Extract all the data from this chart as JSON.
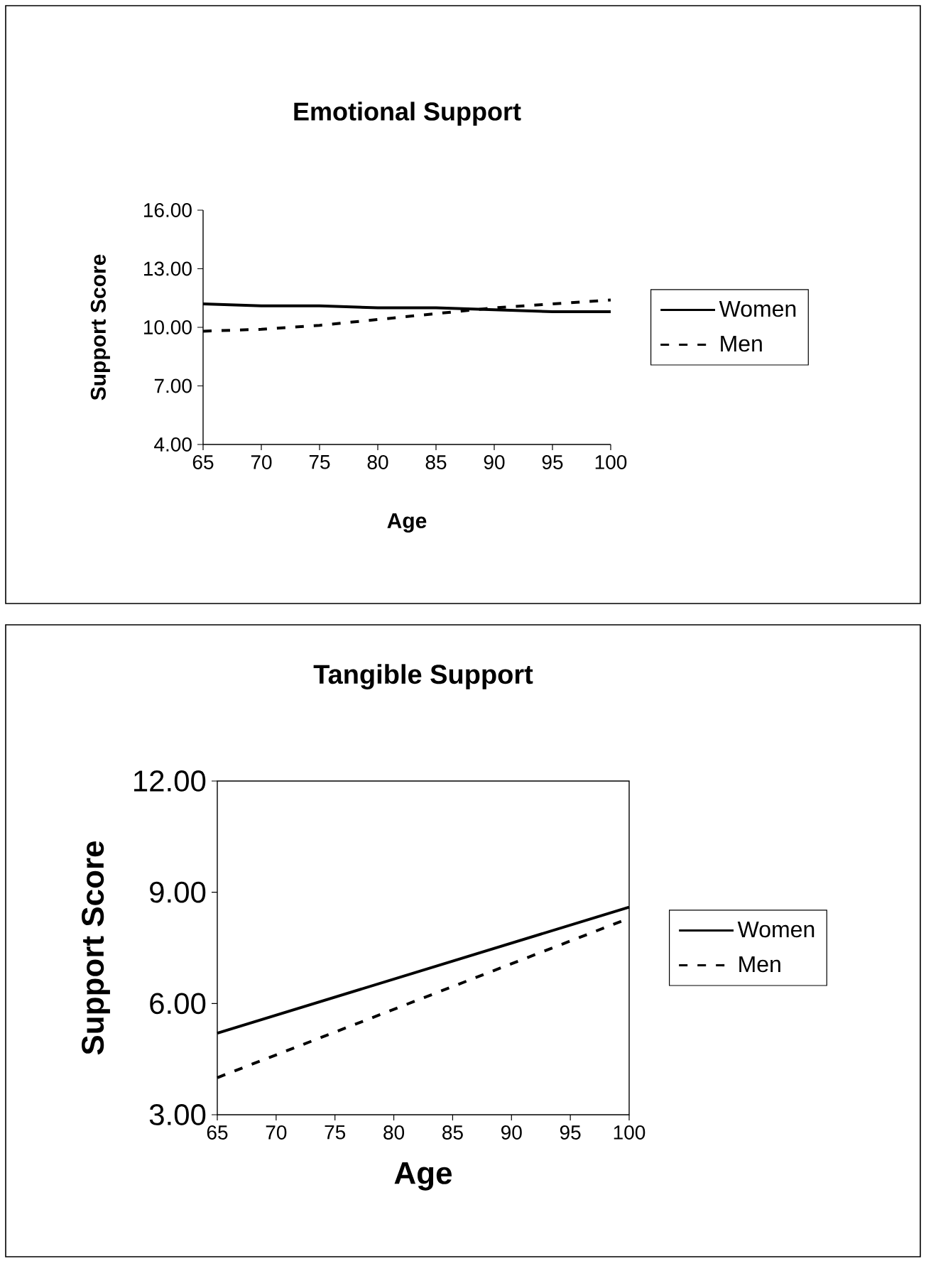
{
  "chart_data": [
    {
      "type": "line",
      "title": "Emotional Support",
      "xlabel": "Age",
      "ylabel": "Support Score",
      "x": [
        65,
        70,
        75,
        80,
        85,
        90,
        95,
        100
      ],
      "series": [
        {
          "name": "Women",
          "color": "#000000",
          "line_style": "solid",
          "values": [
            11.2,
            11.1,
            11.1,
            11.0,
            11.0,
            10.9,
            10.8,
            10.8
          ]
        },
        {
          "name": "Men",
          "color": "#000000",
          "line_style": "dashed",
          "values": [
            9.8,
            9.9,
            10.1,
            10.4,
            10.7,
            11.0,
            11.2,
            11.4
          ]
        }
      ],
      "xlim": [
        65,
        100
      ],
      "ylim": [
        4,
        16
      ],
      "xticks": [
        65,
        70,
        75,
        80,
        85,
        90,
        95,
        100
      ],
      "yticks": [
        {
          "value": 4,
          "label": "4.00"
        },
        {
          "value": 7,
          "label": "7.00"
        },
        {
          "value": 10,
          "label": "10.00"
        },
        {
          "value": 13,
          "label": "13.00"
        },
        {
          "value": 16,
          "label": "16.00"
        }
      ],
      "grid": false,
      "legend": "right",
      "marker": "none"
    },
    {
      "type": "line",
      "title": "Tangible Support",
      "xlabel": "Age",
      "ylabel": "Support Score",
      "x": [
        65,
        100
      ],
      "series": [
        {
          "name": "Women",
          "color": "#000000",
          "line_style": "solid",
          "values": [
            5.2,
            8.6
          ]
        },
        {
          "name": "Men",
          "color": "#000000",
          "line_style": "dashed",
          "values": [
            4.0,
            8.3
          ]
        }
      ],
      "xlim": [
        65,
        100
      ],
      "ylim": [
        3,
        12
      ],
      "xticks": [
        65,
        70,
        75,
        80,
        85,
        90,
        95,
        100
      ],
      "yticks": [
        {
          "value": 3,
          "label": "3.00"
        },
        {
          "value": 6,
          "label": "6.00"
        },
        {
          "value": 9,
          "label": "9.00"
        },
        {
          "value": 12,
          "label": "12.00"
        }
      ],
      "grid": false,
      "legend": "right",
      "marker": "none"
    }
  ]
}
